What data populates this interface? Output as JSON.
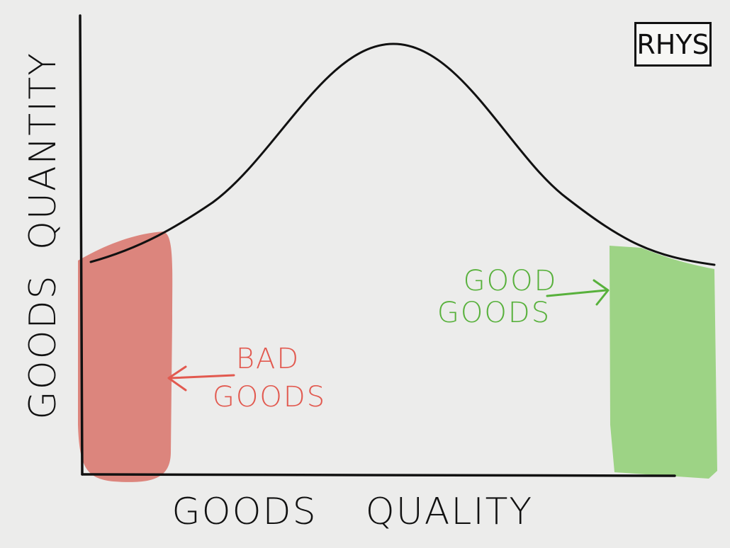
{
  "labels": {
    "y_axis_line1": "QUANTITY",
    "y_axis_line2": "GOODS",
    "x_axis_word1": "GOODS",
    "x_axis_word2": "QUALITY",
    "bad_line1": "BAD",
    "bad_line2": "GOODS",
    "good_line1": "GOOD",
    "good_line2": "GOODS",
    "badge": "RHYS"
  },
  "colors": {
    "background": "#ececeb",
    "ink": "#111111",
    "bad": "#d9736a",
    "bad_text": "#e2594f",
    "good": "#8fcf73",
    "good_text": "#58b13c"
  }
}
